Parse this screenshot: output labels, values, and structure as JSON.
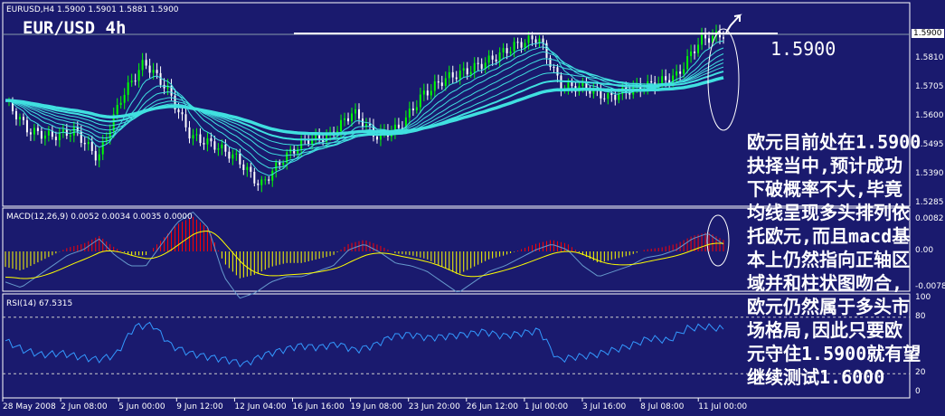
{
  "header": {
    "symbol_line": "EURUSD,H4  1.5900 1.5901 1.5881 1.5900",
    "chart_title": "EUR/USD 4h",
    "level_label": "1.5900"
  },
  "annotation": {
    "lines": [
      "欧元目前处在1.5900",
      "抉择当中,预计成功",
      "下破概率不大,毕竟",
      "均线呈现多头排列依",
      "托欧元,而且macd基",
      "本上仍然指向正轴区",
      "域并和柱状图吻合,",
      "欧元仍然属于多头市",
      "场格局,因此只要欧",
      "元守住1.5900就有望",
      "继续测试1.6000"
    ]
  },
  "colors": {
    "background": "#1a1a6e",
    "bull_candle": "#00ff00",
    "bear_candle": "#ffffff",
    "ma": "#40e0e0",
    "macd_pos": "#ff0000",
    "macd_neg": "#ffff00",
    "signal": "#ffff00",
    "rsi": "#3399ff"
  },
  "chart_data": [
    {
      "type": "candlestick",
      "name": "EURUSD,H4",
      "ylim": [
        1.5285,
        1.5915
      ],
      "y_ticks": [
        "1.5810",
        "1.5705",
        "1.5600",
        "1.5495",
        "1.5390",
        "1.5285"
      ],
      "current_price": "1.5900",
      "x_ticks": [
        "28 May 2008",
        "2 Jun 08:00",
        "5 Jun 00:00",
        "9 Jun 12:00",
        "12 Jun 04:00",
        "16 Jun 16:00",
        "19 Jun 08:00",
        "23 Jun 20:00",
        "26 Jun 12:00",
        "1 Jul 00:00",
        "3 Jul 16:00",
        "8 Jul 08:00",
        "11 Jul 00:00"
      ],
      "close": [
        1.566,
        1.555,
        1.553,
        1.555,
        1.545,
        1.567,
        1.58,
        1.57,
        1.553,
        1.55,
        1.545,
        1.535,
        1.545,
        1.552,
        1.553,
        1.562,
        1.553,
        1.556,
        1.568,
        1.574,
        1.577,
        1.581,
        1.586,
        1.589,
        1.571,
        1.571,
        1.567,
        1.57,
        1.572,
        1.575,
        1.588,
        1.59
      ]
    },
    {
      "type": "bar",
      "name": "MACD(12,26,9) 0.0052 0.0034 0.0035 0.0000",
      "y_ticks": [
        "0.0082",
        "0.00",
        "-0.0078"
      ],
      "histogram": [
        -0.004,
        -0.005,
        -0.003,
        -0.001,
        0.001,
        0.002,
        0.004,
        0.001,
        -0.001,
        -0.001,
        0.003,
        0.007,
        0.009,
        0.006,
        -0.003,
        -0.007,
        -0.006,
        -0.004,
        -0.003,
        -0.003,
        -0.002,
        -0.001,
        0.002,
        0.003,
        0.0015,
        -0.0005,
        -0.001,
        -0.002,
        -0.004,
        -0.006,
        -0.004,
        -0.002,
        -0.001,
        0.0005,
        0.002,
        0.003,
        0.002,
        -0.001,
        -0.003,
        -0.002,
        -0.001,
        0.0005,
        0.001,
        0.002,
        0.004,
        0.005,
        0.003
      ]
    },
    {
      "type": "line",
      "name": "RSI(14) 67.5315",
      "y_ticks": [
        "100",
        "80",
        "20",
        "0"
      ],
      "ylim": [
        0,
        100
      ],
      "values": [
        55,
        45,
        40,
        42,
        38,
        35,
        40,
        70,
        72,
        50,
        42,
        38,
        35,
        30,
        40,
        45,
        50,
        48,
        52,
        45,
        50,
        60,
        62,
        58,
        60,
        62,
        65,
        60,
        63,
        66,
        35,
        38,
        40,
        45,
        50,
        58,
        55,
        68,
        70,
        67.5
      ]
    }
  ]
}
